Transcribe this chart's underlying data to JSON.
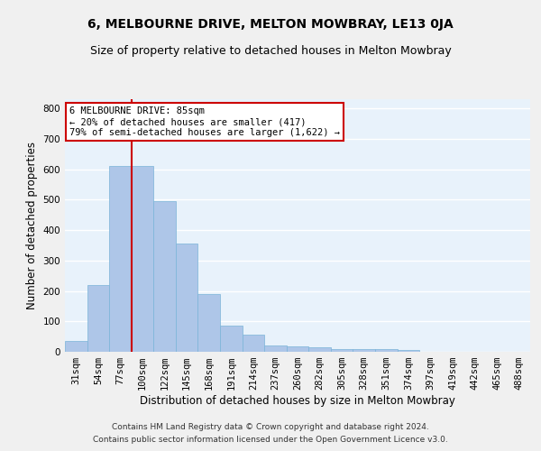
{
  "title": "6, MELBOURNE DRIVE, MELTON MOWBRAY, LE13 0JA",
  "subtitle": "Size of property relative to detached houses in Melton Mowbray",
  "xlabel": "Distribution of detached houses by size in Melton Mowbray",
  "ylabel": "Number of detached properties",
  "categories": [
    "31sqm",
    "54sqm",
    "77sqm",
    "100sqm",
    "122sqm",
    "145sqm",
    "168sqm",
    "191sqm",
    "214sqm",
    "237sqm",
    "260sqm",
    "282sqm",
    "305sqm",
    "328sqm",
    "351sqm",
    "374sqm",
    "397sqm",
    "419sqm",
    "442sqm",
    "465sqm",
    "488sqm"
  ],
  "values": [
    35,
    220,
    610,
    610,
    495,
    355,
    190,
    85,
    55,
    22,
    18,
    15,
    8,
    8,
    8,
    6,
    0,
    0,
    0,
    0,
    0
  ],
  "bar_color": "#aec6e8",
  "bar_edge_color": "#7ab4d8",
  "background_color": "#e8f2fb",
  "grid_color": "#ffffff",
  "vline_color": "#cc0000",
  "annotation_title": "6 MELBOURNE DRIVE: 85sqm",
  "annotation_line1": "← 20% of detached houses are smaller (417)",
  "annotation_line2": "79% of semi-detached houses are larger (1,622) →",
  "annotation_box_color": "#cc0000",
  "ylim": [
    0,
    830
  ],
  "yticks": [
    0,
    100,
    200,
    300,
    400,
    500,
    600,
    700,
    800
  ],
  "footer1": "Contains HM Land Registry data © Crown copyright and database right 2024.",
  "footer2": "Contains public sector information licensed under the Open Government Licence v3.0.",
  "title_fontsize": 10,
  "subtitle_fontsize": 9,
  "axis_label_fontsize": 8.5,
  "tick_fontsize": 7.5,
  "footer_fontsize": 6.5
}
